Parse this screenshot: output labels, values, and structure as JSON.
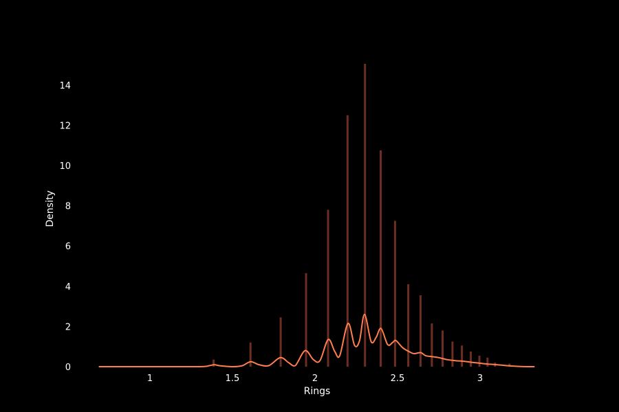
{
  "chart_data": {
    "type": "bar",
    "xlabel": "Rings",
    "ylabel": "Density",
    "xlim": [
      0.68,
      3.33
    ],
    "ylim": [
      0,
      15.4
    ],
    "grid": false,
    "legend": "none",
    "x_ticks": [
      {
        "value": 1,
        "label": "1"
      },
      {
        "value": 1.5,
        "label": "1.5"
      },
      {
        "value": 2,
        "label": "2"
      },
      {
        "value": 2.5,
        "label": "2.5"
      },
      {
        "value": 3,
        "label": "3"
      }
    ],
    "y_ticks": [
      {
        "value": 0,
        "label": "0"
      },
      {
        "value": 2,
        "label": "2"
      },
      {
        "value": 4,
        "label": "4"
      },
      {
        "value": 6,
        "label": "6"
      },
      {
        "value": 8,
        "label": "8"
      },
      {
        "value": 10,
        "label": "10"
      },
      {
        "value": 12,
        "label": "12"
      },
      {
        "value": 14,
        "label": "14"
      }
    ],
    "histogram": {
      "color": "#6b2e20",
      "bars": [
        {
          "x": 1.386,
          "y": 0.35
        },
        {
          "x": 1.609,
          "y": 1.2
        },
        {
          "x": 1.792,
          "y": 2.45
        },
        {
          "x": 1.946,
          "y": 4.65
        },
        {
          "x": 2.079,
          "y": 7.8
        },
        {
          "x": 2.197,
          "y": 12.5
        },
        {
          "x": 2.303,
          "y": 15.05
        },
        {
          "x": 2.398,
          "y": 10.75
        },
        {
          "x": 2.485,
          "y": 7.25
        },
        {
          "x": 2.565,
          "y": 4.1
        },
        {
          "x": 2.639,
          "y": 3.55
        },
        {
          "x": 2.708,
          "y": 2.15
        },
        {
          "x": 2.773,
          "y": 1.8
        },
        {
          "x": 2.833,
          "y": 1.25
        },
        {
          "x": 2.89,
          "y": 1.05
        },
        {
          "x": 2.944,
          "y": 0.75
        },
        {
          "x": 2.996,
          "y": 0.55
        },
        {
          "x": 3.045,
          "y": 0.45
        },
        {
          "x": 3.091,
          "y": 0.2
        },
        {
          "x": 3.178,
          "y": 0.15
        }
      ]
    },
    "kde": {
      "color": "#ff7f50",
      "x": [
        0.69,
        1.0,
        1.3,
        1.36,
        1.39,
        1.42,
        1.5,
        1.56,
        1.61,
        1.66,
        1.72,
        1.79,
        1.84,
        1.88,
        1.94,
        1.99,
        2.03,
        2.08,
        2.12,
        2.15,
        2.2,
        2.24,
        2.27,
        2.3,
        2.34,
        2.37,
        2.4,
        2.44,
        2.47,
        2.49,
        2.53,
        2.57,
        2.6,
        2.64,
        2.67,
        2.71,
        2.75,
        2.8,
        2.85,
        2.9,
        2.95,
        3.0,
        3.05,
        3.1,
        3.15,
        3.2,
        3.25,
        3.33
      ],
      "y": [
        0,
        0,
        0.0,
        0.05,
        0.1,
        0.05,
        0.0,
        0.05,
        0.25,
        0.1,
        0.05,
        0.45,
        0.2,
        0.05,
        0.8,
        0.35,
        0.3,
        1.35,
        0.75,
        0.55,
        2.15,
        1.05,
        1.3,
        2.6,
        1.25,
        1.45,
        1.9,
        1.1,
        1.2,
        1.3,
        0.95,
        0.75,
        0.65,
        0.7,
        0.55,
        0.5,
        0.45,
        0.35,
        0.3,
        0.27,
        0.22,
        0.17,
        0.13,
        0.1,
        0.06,
        0.03,
        0.01,
        0
      ]
    }
  }
}
